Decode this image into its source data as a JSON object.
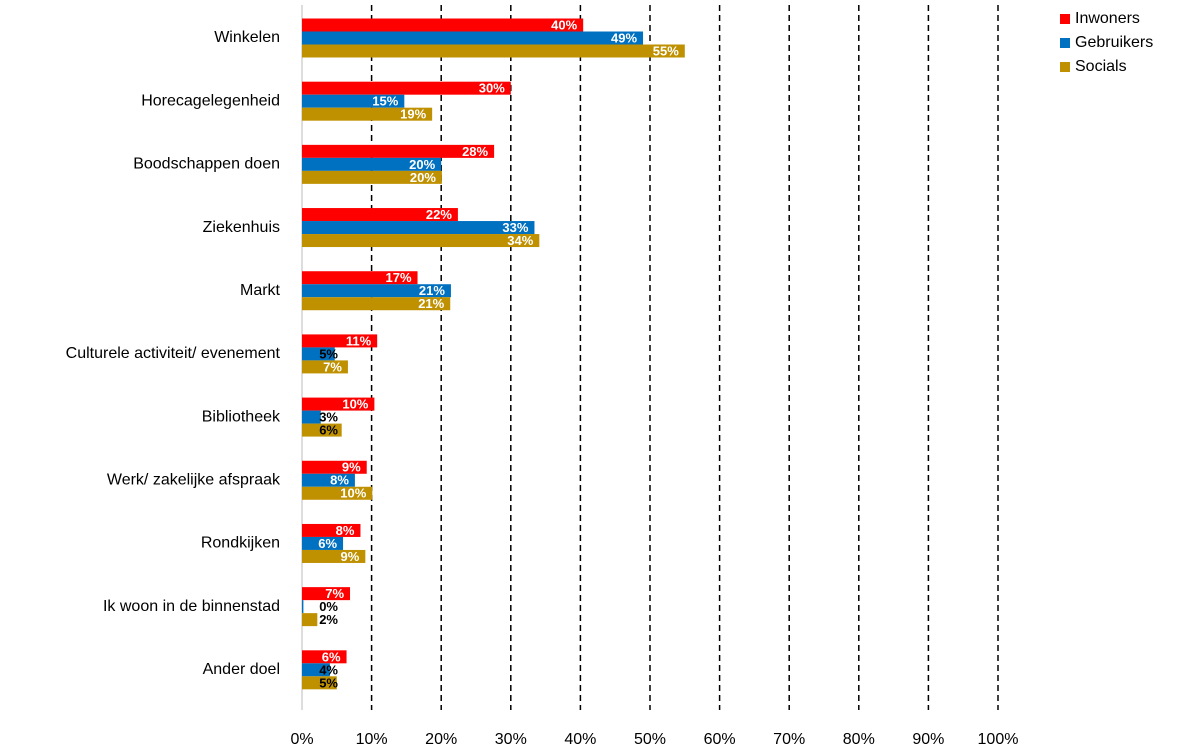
{
  "chart_data": {
    "type": "hbar",
    "categories": [
      "Winkelen",
      "Horecagelegenheid",
      "Boodschappen doen",
      "Ziekenhuis",
      "Markt",
      "Culturele activiteit/ evenement",
      "Bibliotheek",
      "Werk/ zakelijke afspraak",
      "Rondkijken",
      "Ik woon in de binnenstad",
      "Ander doel"
    ],
    "series": [
      {
        "name": "Inwoners",
        "color": "#ff0000",
        "values": [
          40.4,
          30.0,
          27.6,
          22.4,
          16.6,
          10.8,
          10.4,
          9.3,
          8.4,
          6.9,
          6.4
        ],
        "value_labels": [
          "40%",
          "30%",
          "28%",
          "22%",
          "17%",
          "11%",
          "10%",
          "9%",
          "8%",
          "7%",
          "6%"
        ]
      },
      {
        "name": "Gebruikers",
        "color": "#0070c0",
        "values": [
          49.0,
          14.7,
          20.0,
          33.4,
          21.4,
          4.7,
          2.7,
          7.6,
          5.9,
          0.2,
          4.0
        ],
        "value_labels": [
          "49%",
          "15%",
          "20%",
          "33%",
          "21%",
          "5%",
          "3%",
          "8%",
          "6%",
          "0%",
          "4%"
        ]
      },
      {
        "name": "Socials",
        "color": "#bf9000",
        "values": [
          55.0,
          18.7,
          20.1,
          34.1,
          21.3,
          6.6,
          5.7,
          10.1,
          9.1,
          2.2,
          5.0
        ],
        "value_labels": [
          "55%",
          "19%",
          "20%",
          "34%",
          "21%",
          "7%",
          "6%",
          "10%",
          "9%",
          "2%",
          "5%"
        ]
      }
    ],
    "xlim": [
      0,
      100
    ],
    "xticks": [
      {
        "value": 0,
        "label": "0%"
      },
      {
        "value": 10,
        "label": "10%"
      },
      {
        "value": 20,
        "label": "20%"
      },
      {
        "value": 30,
        "label": "30%"
      },
      {
        "value": 40,
        "label": "40%"
      },
      {
        "value": 50,
        "label": "50%"
      },
      {
        "value": 60,
        "label": "60%"
      },
      {
        "value": 70,
        "label": "70%"
      },
      {
        "value": 80,
        "label": "80%"
      },
      {
        "value": 90,
        "label": "90%"
      },
      {
        "value": 100,
        "label": "100%"
      }
    ],
    "grid": true,
    "legend": "top-right"
  }
}
